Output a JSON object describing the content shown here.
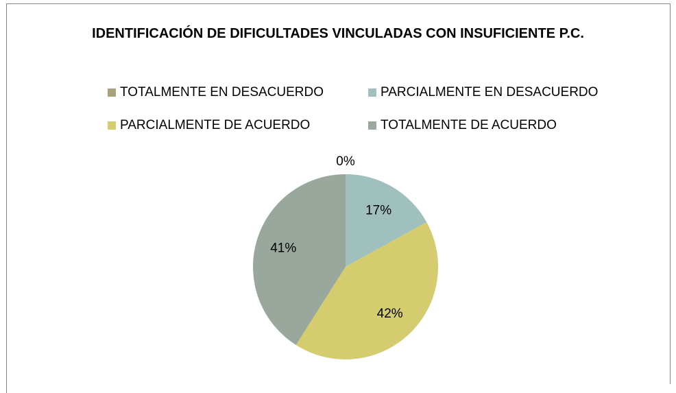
{
  "chart_data": {
    "type": "pie",
    "title": "IDENTIFICACIÓN DE DIFICULTADES VINCULADAS CON INSUFICIENTE P.C.",
    "categories": [
      "TOTALMENTE EN DESACUERDO",
      "PARCIALMENTE EN DESACUERDO",
      "PARCIALMENTE DE ACUERDO",
      "TOTALMENTE DE ACUERDO"
    ],
    "values": [
      0,
      17,
      42,
      41
    ],
    "value_labels": [
      "0%",
      "17%",
      "42%",
      "41%"
    ],
    "colors": [
      "#a9a17b",
      "#a0c0be",
      "#d4cc6e",
      "#99a79d"
    ],
    "legend": "top"
  }
}
